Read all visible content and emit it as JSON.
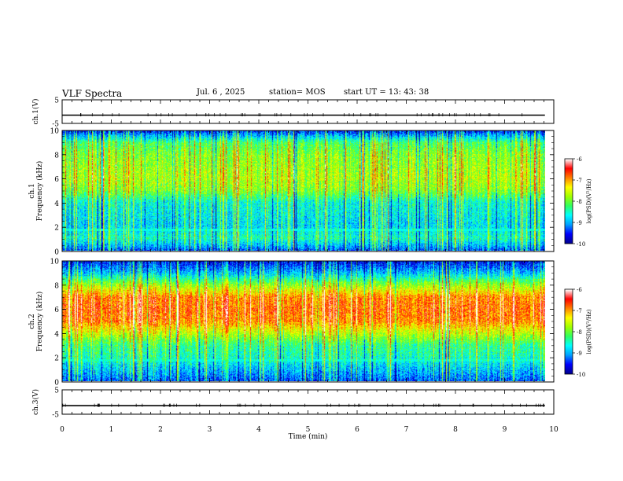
{
  "header": {
    "title": "VLF Spectra",
    "date": "Jul. 6 , 2025",
    "station": "station= MOS",
    "start_ut": "start UT = 13: 43: 38"
  },
  "colors": {
    "colormap": [
      "#000090",
      "#0000ff",
      "#00a0ff",
      "#00ffff",
      "#30ff60",
      "#a0ff00",
      "#ffff00",
      "#ff8000",
      "#ff0000",
      "#ffffff"
    ]
  },
  "chart_data": [
    {
      "type": "line",
      "panel": "ch1-waveform",
      "ylabel": "ch.1(V)",
      "ylim": [
        -5,
        5
      ],
      "yticks": [
        5,
        -5
      ],
      "x": [
        0,
        9.82
      ],
      "values": [
        -1.5,
        -1.5
      ]
    },
    {
      "type": "heatmap",
      "panel": "ch1-spectrogram",
      "ylabel": "ch.1\nFrequency (kHz)",
      "ylim": [
        0,
        10
      ],
      "yticks": [
        0,
        2,
        4,
        6,
        8,
        10
      ],
      "xlim": [
        0,
        10
      ],
      "data_end_min": 9.82,
      "colorbar": {
        "label": "log(PSD)(V²/Hz)",
        "range": [
          -10,
          -6
        ],
        "ticks": [
          -6,
          -7,
          -8,
          -9,
          -10
        ]
      },
      "profile": {
        "freq_khz": [
          0,
          1,
          2,
          3,
          4,
          5,
          6,
          7,
          8,
          9,
          10
        ],
        "log_psd": [
          -9.3,
          -8.5,
          -8.8,
          -8.7,
          -8.6,
          -7.9,
          -7.7,
          -7.8,
          -7.9,
          -8.2,
          -9.5
        ]
      }
    },
    {
      "type": "heatmap",
      "panel": "ch2-spectrogram",
      "ylabel": "ch.2\nFrequency (kHz)",
      "ylim": [
        0,
        10
      ],
      "yticks": [
        0,
        2,
        4,
        6,
        8,
        10
      ],
      "xlim": [
        0,
        10
      ],
      "data_end_min": 9.82,
      "colorbar": {
        "label": "log(PSD)(V²/Hz)",
        "range": [
          -10,
          -6
        ],
        "ticks": [
          -6,
          -7,
          -8,
          -9,
          -10
        ]
      },
      "profile": {
        "freq_khz": [
          0,
          1,
          2,
          3,
          4,
          5,
          6,
          7,
          8,
          9,
          10
        ],
        "log_psd": [
          -9.3,
          -8.9,
          -8.5,
          -8.3,
          -7.6,
          -6.9,
          -6.8,
          -6.9,
          -7.8,
          -8.9,
          -9.6
        ]
      }
    },
    {
      "type": "line",
      "panel": "ch3-waveform",
      "ylabel": "ch.3(V)",
      "ylim": [
        -5,
        5
      ],
      "yticks": [
        5,
        -5
      ],
      "x": [
        0,
        9.82
      ],
      "values": [
        -1.5,
        -1.5
      ]
    }
  ],
  "xaxis": {
    "label": "Time (min)",
    "ticks": [
      0,
      1,
      2,
      3,
      4,
      5,
      6,
      7,
      8,
      9,
      10
    ],
    "xlim": [
      0,
      10
    ]
  }
}
